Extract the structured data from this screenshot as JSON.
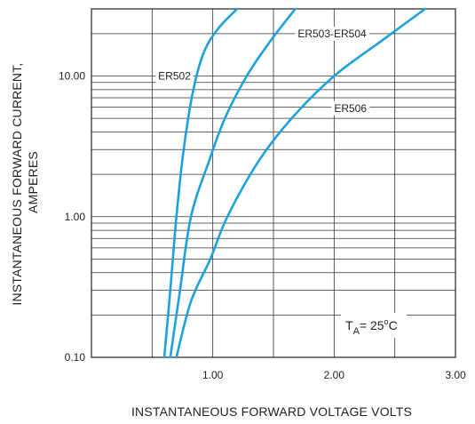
{
  "chart_data": {
    "type": "line",
    "title": "",
    "xlabel": "INSTANTANEOUS FORWARD VOLTAGE VOLTS",
    "ylabel_lines": [
      "INSTANTANEOUS FORWARD CURRENT,",
      "AMPERES"
    ],
    "x_scale": "linear",
    "y_scale": "log",
    "xlim": [
      0,
      3.0
    ],
    "ylim": [
      0.1,
      30
    ],
    "x_ticks": [
      {
        "value": 1.0,
        "label": "1.00"
      },
      {
        "value": 2.0,
        "label": "2.00"
      },
      {
        "value": 3.0,
        "label": "3.00"
      }
    ],
    "y_ticks": [
      {
        "value": 0.1,
        "label": "0.10"
      },
      {
        "value": 1.0,
        "label": "1.00"
      },
      {
        "value": 10.0,
        "label": "10.00"
      }
    ],
    "x_grid_values": [
      0.5,
      1.0,
      1.5,
      2.0,
      2.5
    ],
    "y_grid_values": [
      0.2,
      0.3,
      0.4,
      0.5,
      0.6,
      0.7,
      0.8,
      0.9,
      1,
      2,
      3,
      4,
      5,
      6,
      7,
      8,
      9,
      10,
      20
    ],
    "grid": true,
    "line_color": "#1da1dc",
    "series": [
      {
        "name": "ER502",
        "x": [
          0.6,
          0.65,
          0.7,
          0.76,
          0.84,
          0.93,
          1.05,
          1.2
        ],
        "y": [
          0.1,
          0.3,
          1.0,
          3.0,
          8.0,
          15.0,
          22.0,
          30.0
        ]
      },
      {
        "name": "ER503-ER504",
        "x": [
          0.65,
          0.73,
          0.82,
          0.97,
          1.1,
          1.28,
          1.48,
          1.68
        ],
        "y": [
          0.1,
          0.3,
          1.0,
          2.5,
          5.0,
          10.0,
          18.0,
          30.0
        ]
      },
      {
        "name": "ER506",
        "x": [
          0.7,
          0.82,
          0.98,
          1.12,
          1.38,
          1.65,
          2.0,
          2.4,
          2.75
        ],
        "y": [
          0.1,
          0.25,
          0.5,
          1.0,
          2.5,
          5.0,
          10.0,
          18.0,
          30.0
        ]
      }
    ],
    "curve_labels": [
      {
        "text": "ER502",
        "x": 0.55,
        "y": 10.0
      },
      {
        "text": "ER503-ER504",
        "x": 1.7,
        "y": 20.0
      },
      {
        "text": "ER506",
        "x": 2.0,
        "y": 5.9
      }
    ],
    "annotation": {
      "main": "T",
      "sub": "A",
      "rest": "= 25",
      "deg": "o",
      "unit": "C"
    }
  }
}
